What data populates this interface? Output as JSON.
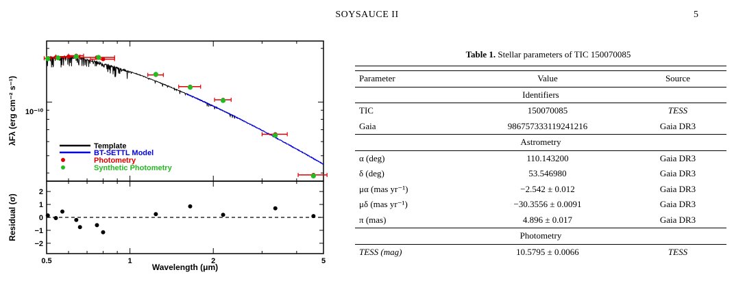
{
  "page": {
    "running_head": "SOYSAUCE II",
    "page_number": "5"
  },
  "table": {
    "label": "Table 1.",
    "caption": "Stellar parameters of TIC 150070085",
    "columns": [
      "Parameter",
      "Value",
      "Source"
    ],
    "sections": [
      {
        "title": "Identifiers",
        "rows": [
          {
            "param": "TIC",
            "value": "150070085",
            "source": "TESS"
          },
          {
            "param": "Gaia",
            "value": "986757333119241216",
            "source": "Gaia DR3"
          }
        ]
      },
      {
        "title": "Astrometry",
        "rows": [
          {
            "param": "α (deg)",
            "value": "110.143200",
            "source": "Gaia DR3"
          },
          {
            "param": "δ (deg)",
            "value": "53.546980",
            "source": "Gaia DR3"
          },
          {
            "param": "μα (mas yr⁻¹)",
            "value": "−2.542 ± 0.012",
            "source": "Gaia DR3"
          },
          {
            "param": "μδ (mas yr⁻¹)",
            "value": "−30.3556 ± 0.0091",
            "source": "Gaia DR3"
          },
          {
            "param": "π (mas)",
            "value": "4.896 ± 0.017",
            "source": "Gaia DR3"
          }
        ]
      },
      {
        "title": "Photometry",
        "rows": [
          {
            "param": "TESS (mag)",
            "value": "10.5795 ± 0.0066",
            "source": "TESS"
          }
        ]
      }
    ]
  },
  "chart_data": [
    {
      "type": "line",
      "panel": "sed",
      "ylabel": "λFλ (erg cm⁻² s⁻¹)",
      "xscale": "log",
      "yscale": "log",
      "xlim": [
        0.5,
        5
      ],
      "ylim": [
        3.6e-11,
        2.2e-10
      ],
      "ytick_labels": [
        "10⁻¹⁰"
      ],
      "legend_placement": "lower-left",
      "legend": [
        "Template",
        "BT-SETTL Model",
        "Photometry",
        "Synthetic Photometry"
      ],
      "colors": {
        "template": "#000000",
        "model": "#0000dd",
        "photometry": "#dd0000",
        "synthetic": "#22bb22"
      },
      "photometry": [
        {
          "x": 0.505,
          "y": 1.76e-10,
          "xerr": 0.015
        },
        {
          "x": 0.54,
          "y": 1.78e-10,
          "xerr": 0.04
        },
        {
          "x": 0.6,
          "y": 1.8e-10,
          "xerr": 0.06
        },
        {
          "x": 0.64,
          "y": 1.82e-10,
          "xerr": 0.04
        },
        {
          "x": 0.76,
          "y": 1.78e-10,
          "xerr": 0.12
        },
        {
          "x": 0.8,
          "y": 1.74e-10,
          "xerr": 0.08
        },
        {
          "x": 1.24,
          "y": 1.42e-10,
          "xerr": 0.08
        },
        {
          "x": 1.65,
          "y": 1.22e-10,
          "xerr": 0.15
        },
        {
          "x": 2.17,
          "y": 1.03e-10,
          "xerr": 0.15
        },
        {
          "x": 3.35,
          "y": 6.6e-11,
          "xerr": 0.35
        },
        {
          "x": 4.6,
          "y": 3.9e-11,
          "xerr": 0.55
        }
      ],
      "synthetic": [
        {
          "x": 0.505,
          "y": 1.75e-10
        },
        {
          "x": 0.55,
          "y": 1.77e-10
        },
        {
          "x": 0.64,
          "y": 1.8e-10
        },
        {
          "x": 0.77,
          "y": 1.78e-10
        },
        {
          "x": 1.24,
          "y": 1.43e-10
        },
        {
          "x": 1.65,
          "y": 1.21e-10
        },
        {
          "x": 2.17,
          "y": 1.02e-10
        },
        {
          "x": 3.35,
          "y": 6.5e-11
        },
        {
          "x": 4.6,
          "y": 3.85e-11
        }
      ]
    },
    {
      "type": "scatter",
      "panel": "residual",
      "xlabel": "Wavelength (μm)",
      "ylabel": "Residual (σ)",
      "xscale": "log",
      "xlim": [
        0.5,
        5
      ],
      "ylim": [
        -2.8,
        2.8
      ],
      "xtick_labels": [
        "0.5",
        "1",
        "2",
        "5"
      ],
      "ytick_labels": [
        "2",
        "1",
        "0",
        "−1",
        "−2"
      ],
      "x": [
        0.505,
        0.54,
        0.57,
        0.64,
        0.66,
        0.76,
        0.8,
        1.24,
        1.65,
        2.17,
        3.35,
        4.6
      ],
      "y": [
        0.15,
        -0.05,
        0.45,
        -0.2,
        -0.75,
        -0.6,
        -1.15,
        0.25,
        0.85,
        0.2,
        0.7,
        0.1
      ]
    }
  ]
}
